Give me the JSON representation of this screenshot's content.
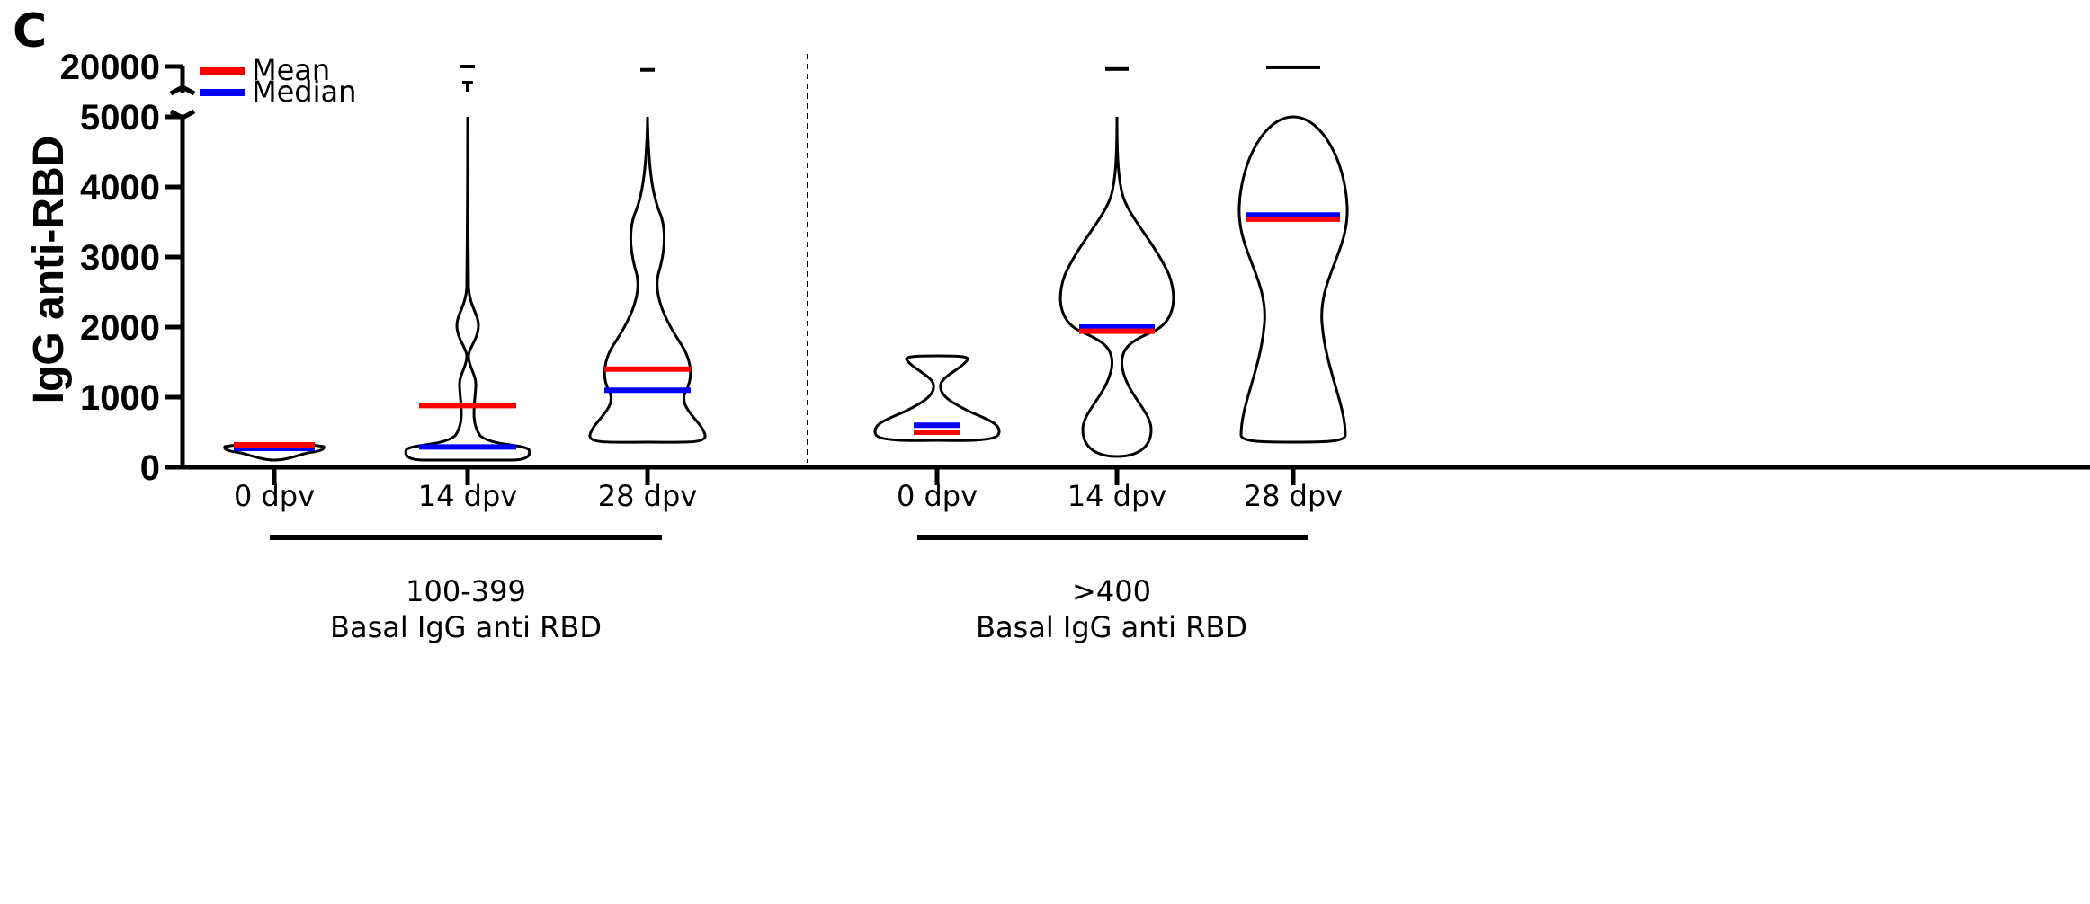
{
  "panel_label": "C",
  "chart_data": {
    "type": "violin",
    "ylabel": "IgG anti-RBD",
    "xlabel": "",
    "y_axis": {
      "segments": [
        {
          "range": [
            0,
            5000
          ],
          "ticks": [
            "0",
            "1000",
            "2000",
            "3000",
            "4000",
            "5000"
          ]
        },
        {
          "range": [
            5000,
            20000
          ],
          "ticks": [
            "20000"
          ]
        }
      ],
      "broken": true
    },
    "legend": {
      "placement": "top-left",
      "entries": [
        {
          "label": "Mean",
          "color": "#ff0000"
        },
        {
          "label": "Median",
          "color": "#0000ff"
        }
      ]
    },
    "groups": [
      {
        "label_line1": "100-399",
        "label_line2": "Basal IgG anti RBD",
        "categories": [
          {
            "label": "0 dpv",
            "min": 110,
            "max": 340,
            "mean": 320,
            "median": 270
          },
          {
            "label": "14 dpv",
            "min": 130,
            "max": 20000,
            "mean": 880,
            "median": 290
          },
          {
            "label": "28 dpv",
            "min": 350,
            "max": 18000,
            "mean": 1400,
            "median": 1100
          }
        ]
      },
      {
        "label_line1": ">400",
        "label_line2": "Basal IgG anti RBD",
        "categories": [
          {
            "label": "0 dpv",
            "min": 390,
            "max": 1580,
            "mean": 500,
            "median": 600
          },
          {
            "label": "14 dpv",
            "min": 130,
            "max": 18500,
            "mean": 1940,
            "median": 2000
          },
          {
            "label": "28 dpv",
            "min": 350,
            "max": 19500,
            "mean": 3540,
            "median": 3600
          }
        ]
      }
    ]
  }
}
